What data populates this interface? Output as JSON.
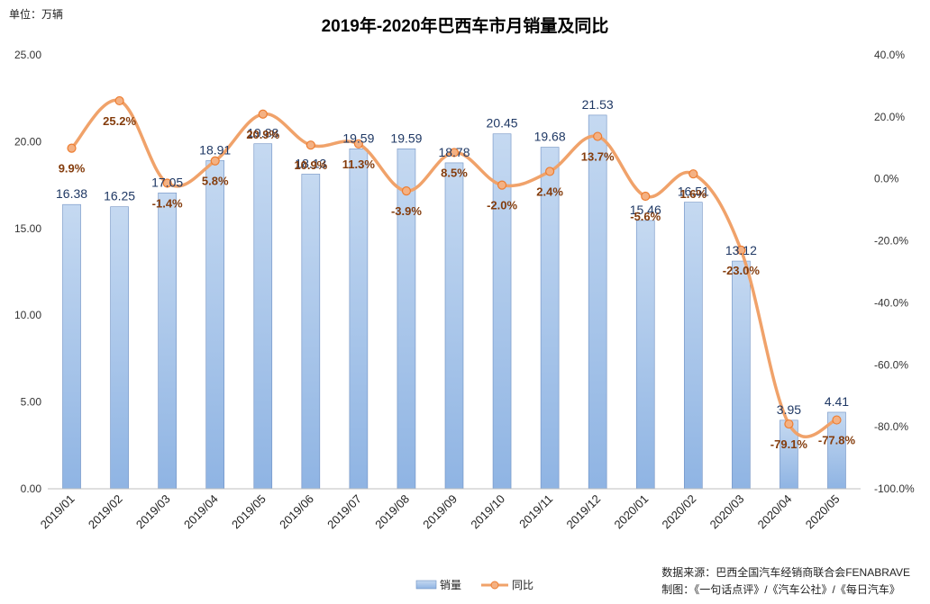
{
  "unit_label": "单位：万辆",
  "chart_data": {
    "type": "bar",
    "title": "2019年-2020年巴西车市月销量及同比",
    "categories": [
      "2019/01",
      "2019/02",
      "2019/03",
      "2019/04",
      "2019/05",
      "2019/06",
      "2019/07",
      "2019/08",
      "2019/09",
      "2019/10",
      "2019/11",
      "2019/12",
      "2020/01",
      "2020/02",
      "2020/03",
      "2020/04",
      "2020/05"
    ],
    "series": [
      {
        "name": "销量",
        "type": "bar",
        "axis": "left",
        "values": [
          16.38,
          16.25,
          17.05,
          18.91,
          19.88,
          18.13,
          19.59,
          19.59,
          18.78,
          20.45,
          19.68,
          21.53,
          15.46,
          16.51,
          13.12,
          3.95,
          4.41
        ],
        "labels": [
          "16.38",
          "16.25",
          "17.05",
          "18.91",
          "19.88",
          "18.13",
          "19.59",
          "19.59",
          "18.78",
          "20.45",
          "19.68",
          "21.53",
          "15.46",
          "16.51",
          "13.12",
          "3.95",
          "4.41"
        ],
        "color": "#8fb4e3"
      },
      {
        "name": "同比",
        "type": "line",
        "axis": "right",
        "values": [
          9.9,
          25.2,
          -1.4,
          5.8,
          20.9,
          10.9,
          11.3,
          -3.9,
          8.5,
          -2.0,
          2.4,
          13.7,
          -5.6,
          1.6,
          -23.0,
          -79.1,
          -77.8
        ],
        "labels": [
          "9.9%",
          "25.2%",
          "-1.4%",
          "5.8%",
          "20.9%",
          "10.9%",
          "11.3%",
          "-3.9%",
          "8.5%",
          "-2.0%",
          "2.4%",
          "13.7%",
          "-5.6%",
          "1.6%",
          "-23.0%",
          "-79.1%",
          "-77.8%"
        ],
        "color": "#f0a26a"
      }
    ],
    "y_left": {
      "min": 0,
      "max": 25,
      "ticks": [
        "0.00",
        "5.00",
        "10.00",
        "15.00",
        "20.00",
        "25.00"
      ]
    },
    "y_right": {
      "min": -100,
      "max": 40,
      "ticks": [
        "-100.0%",
        "-80.0%",
        "-60.0%",
        "-40.0%",
        "-20.0%",
        "0.0%",
        "20.0%",
        "40.0%"
      ]
    },
    "grid": false,
    "legend_position": "bottom",
    "bar_label_color": "#1f3864",
    "line_label_color": "#843c0c"
  },
  "source": {
    "line1": "数据来源：巴西全国汽车经销商联合会FENABRAVE",
    "line2": "制图：《一句话点评》/《汽车公社》/《每日汽车》"
  }
}
